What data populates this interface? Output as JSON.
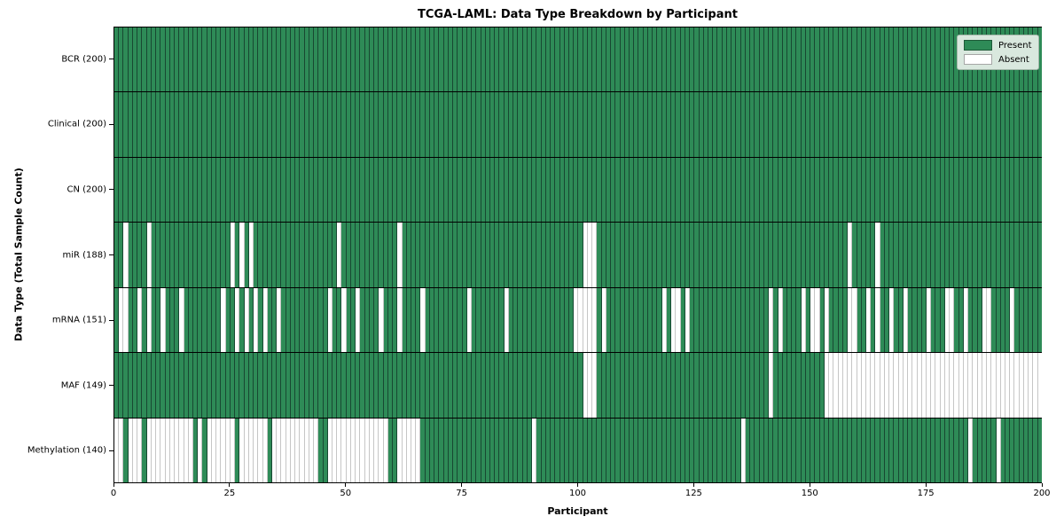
{
  "chart_data": {
    "type": "heatmap",
    "title": "TCGA-LAML: Data Type Breakdown by Participant",
    "xlabel": "Participant",
    "ylabel": "Data Type (Total Sample Count)",
    "n_participants": 200,
    "x_ticks": [
      0,
      25,
      50,
      75,
      100,
      125,
      150,
      175,
      200
    ],
    "grid": false,
    "legend_position": "upper right",
    "legend": [
      {
        "label": "Present",
        "color": "#2e8b57"
      },
      {
        "label": "Absent",
        "color": "#ffffff"
      }
    ],
    "rows": [
      {
        "label": "BCR (200)",
        "total": 200,
        "absent": []
      },
      {
        "label": "Clinical (200)",
        "total": 200,
        "absent": []
      },
      {
        "label": "CN (200)",
        "total": 200,
        "absent": []
      },
      {
        "label": "miR (188)",
        "total": 188,
        "absent": [
          2,
          7,
          25,
          27,
          29,
          48,
          61,
          101,
          102,
          103,
          158,
          164
        ]
      },
      {
        "label": "mRNA (151)",
        "total": 151,
        "absent": [
          1,
          2,
          5,
          7,
          10,
          14,
          23,
          26,
          28,
          30,
          32,
          35,
          46,
          49,
          52,
          57,
          61,
          66,
          76,
          84,
          99,
          100,
          101,
          102,
          103,
          105,
          118,
          120,
          121,
          123,
          141,
          143,
          148,
          150,
          151,
          153,
          158,
          159,
          162,
          164,
          167,
          170,
          175,
          179,
          180,
          183,
          187,
          188,
          193
        ]
      },
      {
        "label": "MAF (149)",
        "total": 149,
        "absent": [
          101,
          102,
          103,
          141,
          153,
          154,
          155,
          156,
          157,
          158,
          159,
          160,
          161,
          162,
          163,
          164,
          165,
          166,
          167,
          168,
          169,
          170,
          171,
          172,
          173,
          174,
          175,
          176,
          177,
          178,
          179,
          180,
          181,
          182,
          183,
          184,
          185,
          186,
          187,
          188,
          189,
          190,
          191,
          192,
          193,
          194,
          195,
          196,
          197,
          198,
          199
        ]
      },
      {
        "label": "Methylation (140)",
        "total": 140,
        "absent": [
          0,
          1,
          3,
          4,
          5,
          7,
          8,
          9,
          10,
          11,
          12,
          13,
          14,
          15,
          16,
          18,
          20,
          21,
          22,
          23,
          24,
          25,
          27,
          28,
          29,
          30,
          31,
          32,
          34,
          35,
          36,
          37,
          38,
          39,
          40,
          41,
          42,
          43,
          46,
          47,
          48,
          49,
          50,
          51,
          52,
          53,
          54,
          55,
          56,
          57,
          58,
          61,
          62,
          63,
          64,
          65,
          90,
          135,
          184,
          190
        ]
      }
    ]
  }
}
